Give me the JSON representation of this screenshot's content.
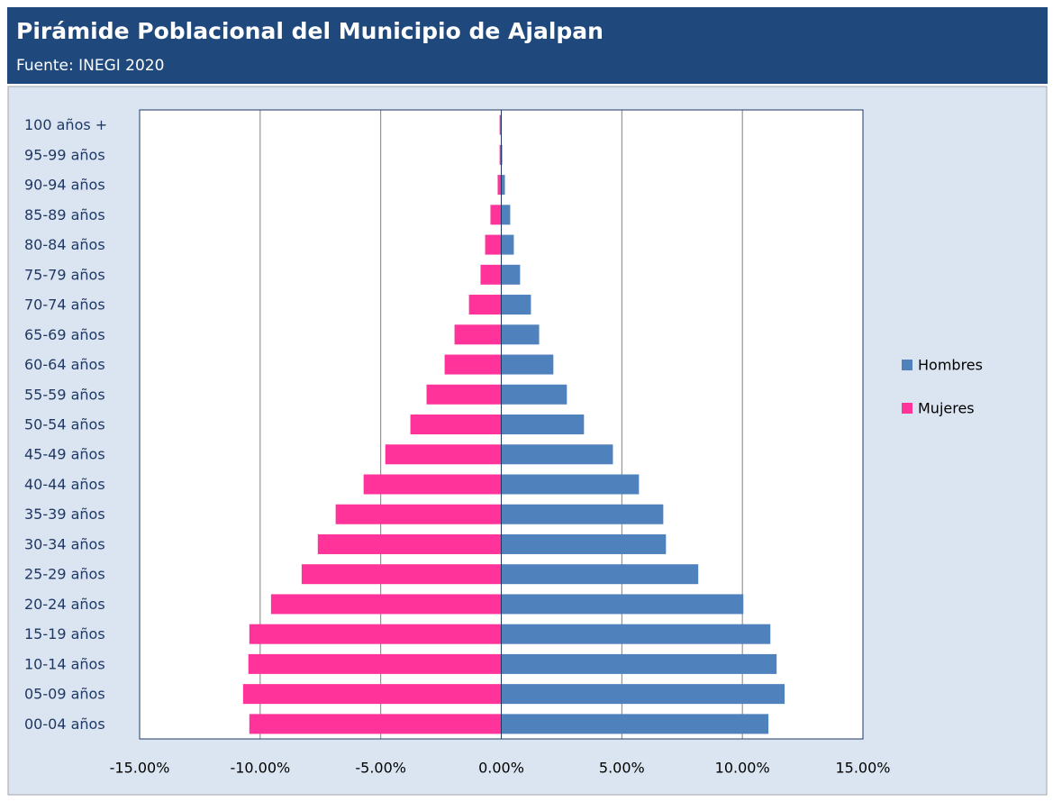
{
  "chart_data": {
    "type": "bar",
    "orientation": "horizontal",
    "stacked": true,
    "title": "Pirámide Poblacional del Municipio de Ajalpan",
    "subtitle": "Fuente: INEGI 2020",
    "categories": [
      "100 años +",
      "95-99 años",
      "90-94 años",
      "85-89 años",
      "80-84 años",
      "75-79 años",
      "70-74 años",
      "65-69 años",
      "60-64 años",
      "55-59 años",
      "50-54 años",
      "45-49 años",
      "40-44 años",
      "35-39 años",
      "30-34 años",
      "25-29 años",
      "20-24 años",
      "15-19 años",
      "10-14 años",
      "05-09 años",
      "00-04 años"
    ],
    "series": [
      {
        "name": "Hombres",
        "color": "#4f81bd",
        "values": [
          0.02,
          0.04,
          0.15,
          0.37,
          0.52,
          0.78,
          1.23,
          1.57,
          2.16,
          2.72,
          3.43,
          4.63,
          5.71,
          6.72,
          6.83,
          8.17,
          10.04,
          11.16,
          11.42,
          11.75,
          11.08
        ]
      },
      {
        "name": "Mujeres",
        "color": "#ff3399",
        "values": [
          -0.07,
          -0.07,
          -0.15,
          -0.45,
          -0.67,
          -0.86,
          -1.34,
          -1.94,
          -2.35,
          -3.1,
          -3.77,
          -4.81,
          -5.71,
          -6.87,
          -7.61,
          -8.28,
          -9.55,
          -10.45,
          -10.49,
          -10.71,
          -10.45
        ]
      }
    ],
    "xlim": [
      -15,
      15
    ],
    "xticks": [
      {
        "value": -15,
        "label": "-15.00%"
      },
      {
        "value": -10,
        "label": "-10.00%"
      },
      {
        "value": -5,
        "label": "-5.00%"
      },
      {
        "value": 0,
        "label": "0.00%"
      },
      {
        "value": 5,
        "label": "5.00%"
      },
      {
        "value": 10,
        "label": "10.00%"
      },
      {
        "value": 15,
        "label": "15.00%"
      }
    ],
    "grid": true,
    "legend": "right"
  }
}
